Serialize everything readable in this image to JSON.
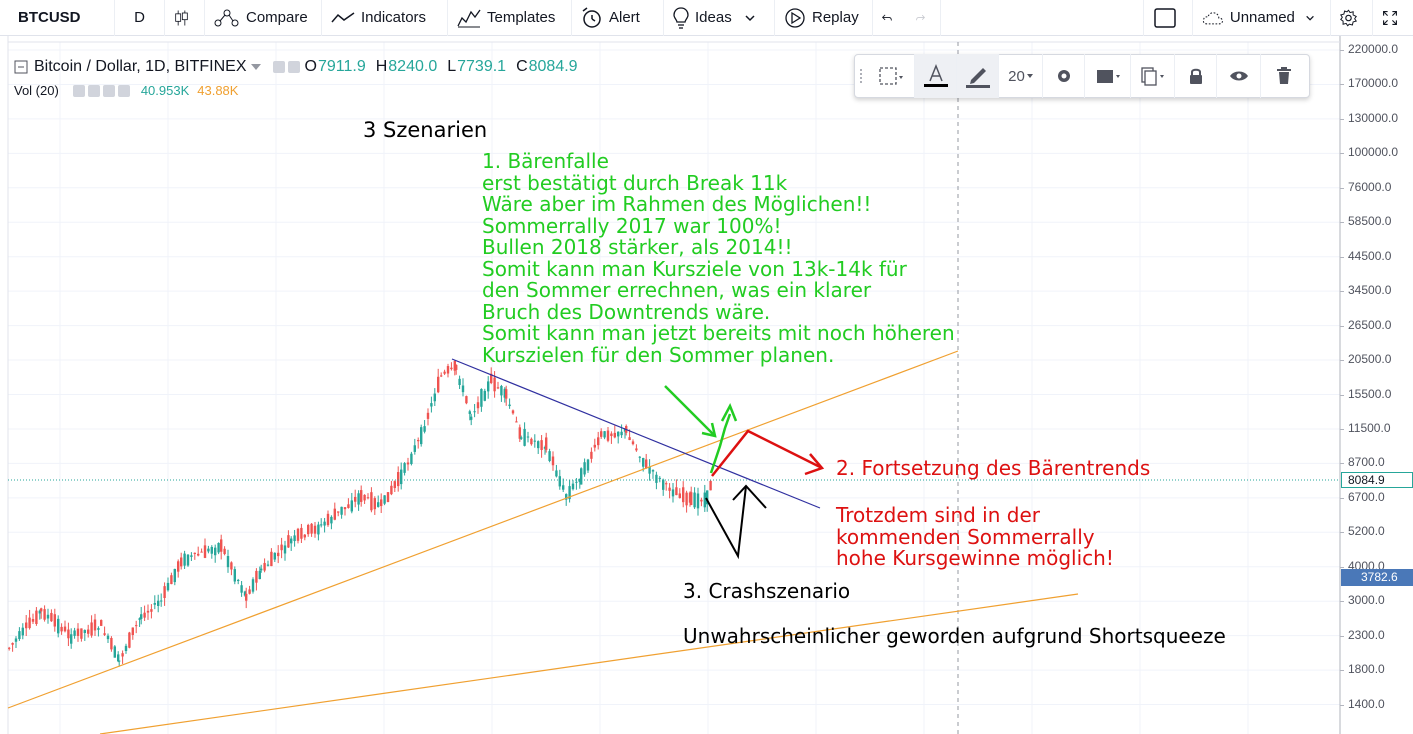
{
  "toolbar": {
    "symbol": "BTCUSD",
    "interval": "D",
    "compare_label": "Compare",
    "indicators_label": "Indicators",
    "templates_label": "Templates",
    "alert_label": "Alert",
    "ideas_label": "Ideas",
    "replay_label": "Replay",
    "layout_name": "Unnamed"
  },
  "legend": {
    "title": "Bitcoin / Dollar, 1D, BITFINEX",
    "o_key": "O",
    "o_val": "7911.9",
    "h_key": "H",
    "h_val": "8240.0",
    "l_key": "L",
    "l_val": "7739.1",
    "c_key": "C",
    "c_val": "8084.9",
    "vol_label": "Vol (20)",
    "vol_val1": "40.953K",
    "vol_val2": "43.88K"
  },
  "drawing_toolbar": {
    "font_size": "20"
  },
  "price_axis": {
    "labels": [
      "220000.0",
      "170000.0",
      "130000.0",
      "100000.0",
      "76000.0",
      "58500.0",
      "44500.0",
      "34500.0",
      "26500.0",
      "20500.0",
      "15500.0",
      "11500.0",
      "8700.0",
      "6700.0",
      "5200.0",
      "4000.0",
      "3000.0",
      "2300.0",
      "1800.0",
      "1400.0"
    ],
    "last_price": "8084.9",
    "crosshair_price": "3782.6"
  },
  "annotations": {
    "scenarios_title": "3 Szenarien",
    "green_text": "1. Bärenfalle\nerst bestätigt durch Break 11k\nWäre aber im Rahmen des Möglichen!!\nSommerrally 2017 war 100%!\nBullen 2018 stärker, als 2014!!\nSomit kann man Kursziele von 13k-14k für\nden Sommer errechnen, was ein klarer\nBruch des Downtrends wäre.\nSomit kann man jetzt bereits mit noch höheren\nKurszielen für den Sommer planen.",
    "red_title": "2. Fortsetzung des Bärentrends",
    "red_text": "Trotzdem sind in der\nkommenden Sommerrally\nhohe Kursgewinne möglich!",
    "crash_title": "3. Crashszenario",
    "crash_text": "Unwahrscheinlicher geworden aufgrund Shortsqueeze"
  },
  "colors": {
    "up": "#26a69a",
    "down": "#ef5350",
    "green_text": "#22cc22",
    "red_text": "#dd1111",
    "trendline": "#f0a030",
    "downtrend": "#3030a0"
  }
}
